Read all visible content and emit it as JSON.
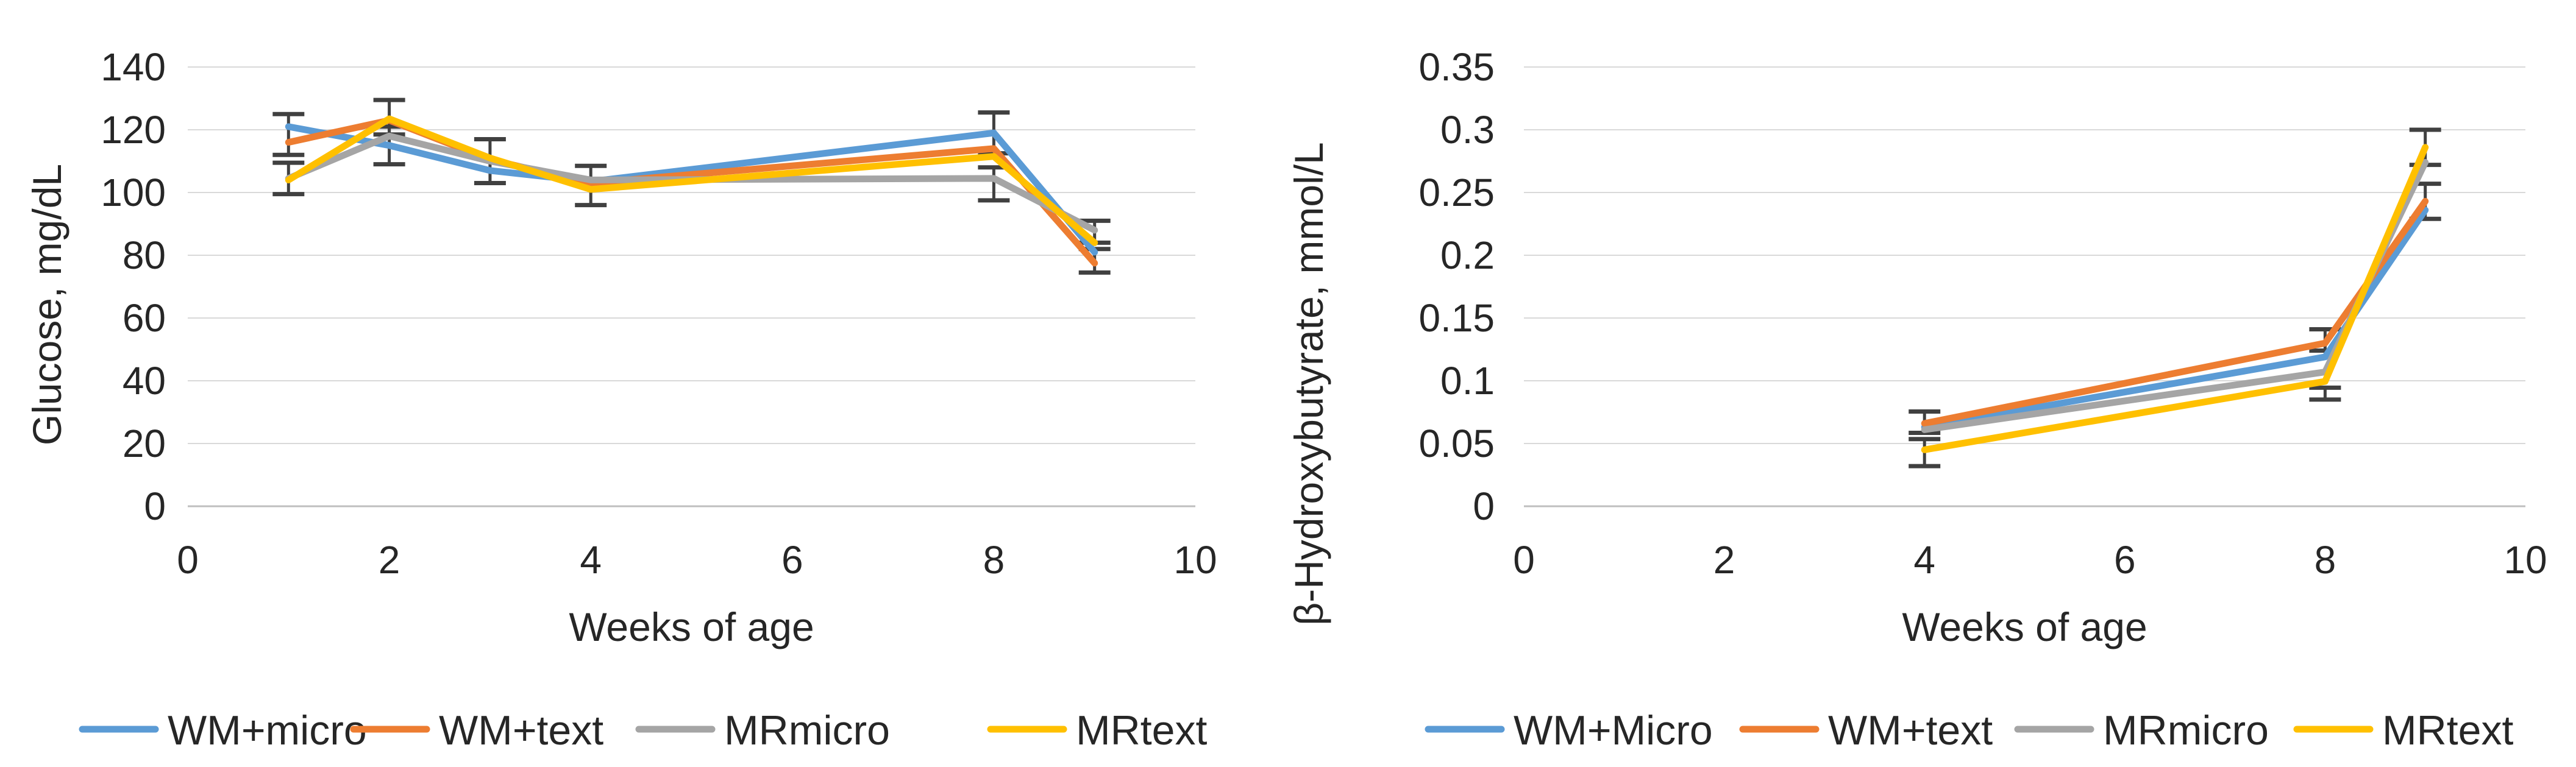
{
  "page": {
    "background_color": "#ffffff",
    "text_color": "#262626"
  },
  "chart_data": [
    {
      "type": "line",
      "title": "",
      "ylabel": "Glucose, mg/dL",
      "xlabel": "Weeks of age",
      "ylim": [
        0,
        140
      ],
      "xlim": [
        0,
        10
      ],
      "yticks": [
        140,
        120,
        100,
        80,
        60,
        40,
        20,
        0
      ],
      "ytick_labels": [
        "140",
        "120",
        "100",
        "80",
        "60",
        "40",
        "20",
        "0"
      ],
      "xticks": [
        0,
        2,
        4,
        6,
        8,
        10
      ],
      "xtick_labels": [
        "0",
        "2",
        "4",
        "6",
        "8",
        "10"
      ],
      "grid_on": true,
      "grid_color": "#d9d9d9",
      "axis_color": "#bfbfbf",
      "error_bar_color": "#404040",
      "legend_position": "bottom",
      "x": [
        1,
        2,
        3,
        4,
        8,
        9
      ],
      "series": [
        {
          "name": "WM+micro",
          "color": "#5B9BD5",
          "points": [
            [
              1,
              121
            ],
            [
              2,
              115
            ],
            [
              3,
              107
            ],
            [
              4,
              103.5
            ],
            [
              8,
              119
            ],
            [
              9,
              81
            ]
          ]
        },
        {
          "name": "WM+text",
          "color": "#ED7D31",
          "points": [
            [
              1,
              116
            ],
            [
              2,
              123
            ],
            [
              3,
              110.5
            ],
            [
              4,
              103
            ],
            [
              8,
              114
            ],
            [
              9,
              77.5
            ]
          ]
        },
        {
          "name": "MRmicro",
          "color": "#A5A5A5",
          "points": [
            [
              1,
              104.5
            ],
            [
              2,
              118
            ],
            [
              3,
              110
            ],
            [
              4,
              104
            ],
            [
              8,
              104.5
            ],
            [
              9,
              88
            ]
          ]
        },
        {
          "name": "MRtext",
          "color": "#FFC000",
          "points": [
            [
              1,
              104
            ],
            [
              2,
              123.5
            ],
            [
              3,
              111
            ],
            [
              4,
              101
            ],
            [
              8,
              111.5
            ],
            [
              9,
              84
            ]
          ]
        }
      ],
      "error_bars": [
        {
          "x": 1,
          "lo": 112,
          "hi": 125
        },
        {
          "x": 1,
          "lo": 99.5,
          "hi": 109.5
        },
        {
          "x": 2,
          "lo": 118.5,
          "hi": 129.5
        },
        {
          "x": 2,
          "lo": 109,
          "hi": 121
        },
        {
          "x": 3,
          "lo": 103,
          "hi": 117
        },
        {
          "x": 4,
          "lo": 96,
          "hi": 108.5
        },
        {
          "x": 8,
          "lo": 112.5,
          "hi": 125.5
        },
        {
          "x": 8,
          "lo": 97.5,
          "hi": 108
        },
        {
          "x": 9,
          "lo": 84,
          "hi": 91
        },
        {
          "x": 9,
          "lo": 74.5,
          "hi": 82
        }
      ]
    },
    {
      "type": "line",
      "title": "",
      "ylabel": "β-Hydroxybutyrate, mmol/L",
      "xlabel": "Weeks of age",
      "ylim": [
        0,
        0.35
      ],
      "xlim": [
        0,
        10
      ],
      "yticks": [
        0.35,
        0.3,
        0.25,
        0.2,
        0.15,
        0.1,
        0.05,
        0
      ],
      "ytick_labels": [
        "0.35",
        "0.3",
        "0.25",
        "0.2",
        "0.15",
        "0.1",
        "0.05",
        "0"
      ],
      "xticks": [
        0,
        2,
        4,
        6,
        8,
        10
      ],
      "xtick_labels": [
        "0",
        "2",
        "4",
        "6",
        "8",
        "10"
      ],
      "grid_on": true,
      "grid_color": "#d9d9d9",
      "axis_color": "#bfbfbf",
      "error_bar_color": "#404040",
      "legend_position": "bottom",
      "x": [
        4,
        8,
        9
      ],
      "series": [
        {
          "name": "WM+Micro",
          "color": "#5B9BD5",
          "points": [
            [
              4,
              0.063
            ],
            [
              8,
              0.119
            ],
            [
              9,
              0.236
            ]
          ]
        },
        {
          "name": "WM+text",
          "color": "#ED7D31",
          "points": [
            [
              4,
              0.066
            ],
            [
              8,
              0.13
            ],
            [
              9,
              0.243
            ]
          ]
        },
        {
          "name": "MRmicro",
          "color": "#A5A5A5",
          "points": [
            [
              4,
              0.061
            ],
            [
              8,
              0.107
            ],
            [
              9,
              0.274
            ]
          ]
        },
        {
          "name": "MRtext",
          "color": "#FFC000",
          "points": [
            [
              4,
              0.045
            ],
            [
              8,
              0.0995
            ],
            [
              9,
              0.286
            ]
          ]
        }
      ],
      "error_bars": [
        {
          "x": 4,
          "lo": 0.0585,
          "hi": 0.0755
        },
        {
          "x": 4,
          "lo": 0.032,
          "hi": 0.0535
        },
        {
          "x": 8,
          "lo": 0.124,
          "hi": 0.141
        },
        {
          "x": 8,
          "lo": 0.085,
          "hi": 0.0945
        },
        {
          "x": 9,
          "lo": 0.272,
          "hi": 0.3
        },
        {
          "x": 9,
          "lo": 0.229,
          "hi": 0.257
        }
      ]
    }
  ]
}
